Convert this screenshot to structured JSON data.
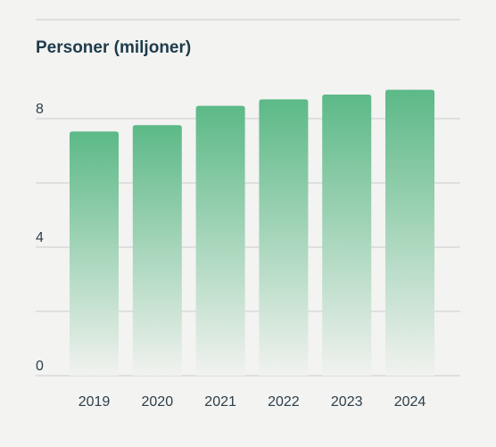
{
  "chart_data": {
    "type": "bar",
    "title": "Personer (miljoner)",
    "xlabel": "",
    "ylabel": "",
    "categories": [
      "2019",
      "2020",
      "2021",
      "2022",
      "2023",
      "2024"
    ],
    "values": [
      7.6,
      7.8,
      8.4,
      8.6,
      8.75,
      8.9
    ],
    "ylim": [
      0,
      10
    ],
    "yticks": [
      0,
      2,
      4,
      6,
      8
    ],
    "ytick_labels": [
      "0",
      "",
      "4",
      "",
      "8"
    ],
    "grid": true,
    "colors": {
      "bar_top": "#5cb987",
      "bar_bottom": "#f1f2ef",
      "grid": "#c9cdcd",
      "background": "#f3f3f1",
      "title": "#1e3b4c",
      "tick": "#2b3f4c"
    }
  }
}
